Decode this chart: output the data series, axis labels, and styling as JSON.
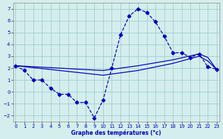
{
  "xlabel": "Graphe des températures (°c)",
  "background_color": "#d4eeed",
  "line_color": "#0000bb",
  "grid_color": "#a0cccc",
  "ylim": [
    -2.5,
    7.5
  ],
  "xlim": [
    -0.3,
    23.3
  ],
  "yticks": [
    -2,
    -1,
    0,
    1,
    2,
    3,
    4,
    5,
    6,
    7
  ],
  "xticks": [
    0,
    1,
    2,
    3,
    4,
    5,
    6,
    7,
    8,
    9,
    10,
    11,
    12,
    13,
    14,
    15,
    16,
    17,
    18,
    19,
    20,
    21,
    22,
    23
  ],
  "series1_x": [
    0,
    1,
    2,
    3,
    4,
    5,
    6,
    7,
    8,
    9,
    10,
    11,
    12,
    13,
    14,
    15,
    16,
    17,
    18,
    19,
    20,
    21,
    22,
    23
  ],
  "series1_y": [
    2.2,
    1.8,
    1.0,
    1.0,
    0.3,
    -0.2,
    -0.2,
    -0.9,
    -0.9,
    -2.2,
    -0.7,
    2.0,
    4.8,
    6.4,
    7.0,
    6.7,
    5.9,
    4.7,
    3.3,
    3.3,
    2.9,
    3.2,
    2.1,
    1.9
  ],
  "series2_x": [
    0,
    10,
    14,
    18,
    21,
    22,
    23
  ],
  "series2_y": [
    2.2,
    1.8,
    2.2,
    2.7,
    3.2,
    2.9,
    1.9
  ],
  "series3_x": [
    0,
    10,
    14,
    18,
    21,
    22,
    23
  ],
  "series3_y": [
    2.2,
    1.4,
    1.8,
    2.4,
    3.0,
    2.6,
    1.9
  ]
}
